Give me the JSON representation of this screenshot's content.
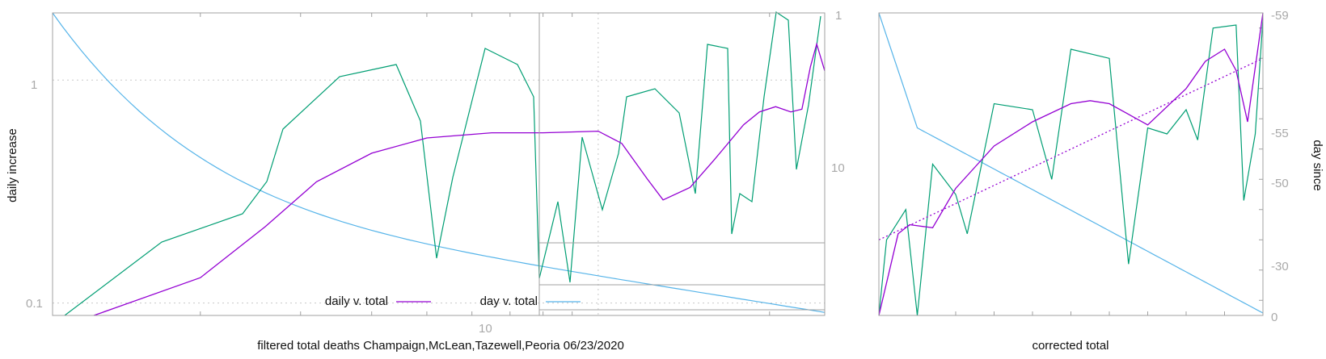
{
  "colors": {
    "daily": "#9400d3",
    "day": "#56b4e9",
    "raw": "#009e73",
    "grid": "#c8c8c8",
    "frame": "#a0a0a0",
    "tick_text": "#a9a9a9",
    "text": "#111111"
  },
  "chart_data": [
    {
      "type": "line",
      "scale": "log-log",
      "xlabel": "filtered total deaths Champaign,McLean,Tazewell,Peoria 06/23/2020",
      "ylabel": "daily increase",
      "xlim": [
        1.1,
        25
      ],
      "ylim": [
        0.088,
        2.0
      ],
      "x_tick_labels": [
        "10"
      ],
      "y_tick_labels": [
        "1",
        "0.1"
      ],
      "grid": true,
      "legend_position": "bottom-center",
      "series": [
        {
          "name": "daily v. total",
          "color_key": "daily",
          "x": [
            1.3,
            2.0,
            2.6,
            3.2,
            4.0,
            5.0,
            6.5,
            8.0,
            10.0,
            11.0,
            12.2,
            13.0,
            14.5,
            16.0,
            18.0,
            19.2,
            20.5,
            21.8,
            22.8,
            23.6,
            24.2,
            25.0
          ],
          "y": [
            0.088,
            0.13,
            0.22,
            0.35,
            0.47,
            0.55,
            0.58,
            0.58,
            0.59,
            0.52,
            0.36,
            0.29,
            0.33,
            0.44,
            0.63,
            0.72,
            0.76,
            0.72,
            0.74,
            1.15,
            1.45,
            1.1
          ]
        }
      ],
      "inset": {
        "note": "small log-scale overlay in upper right",
        "tick_labels": [
          "1",
          "10"
        ]
      }
    },
    {
      "type": "line",
      "xlabel": "corrected total",
      "ylabel": "day since",
      "y2_tick_labels": [
        "-59",
        "-55",
        "-50",
        "-30",
        "0"
      ],
      "series": [
        {
          "name": "",
          "color_key": "daily",
          "style": "solid",
          "x": [
            0.0,
            0.05,
            0.08,
            0.14,
            0.2,
            0.3,
            0.4,
            0.5,
            0.55,
            0.6,
            0.7,
            0.8,
            0.85,
            0.9,
            0.93,
            0.96,
            1.0
          ],
          "y": [
            0.0,
            0.27,
            0.3,
            0.29,
            0.42,
            0.56,
            0.64,
            0.7,
            0.71,
            0.7,
            0.63,
            0.75,
            0.84,
            0.88,
            0.81,
            0.64,
            1.0
          ]
        },
        {
          "name": "",
          "color_key": "daily",
          "style": "dotted",
          "x": [
            0.0,
            1.0
          ],
          "y": [
            0.25,
            0.85
          ]
        }
      ]
    }
  ],
  "legend": [
    {
      "label": "daily v. total",
      "color_key": "daily"
    },
    {
      "label": "day v. total",
      "color_key": "day"
    }
  ]
}
